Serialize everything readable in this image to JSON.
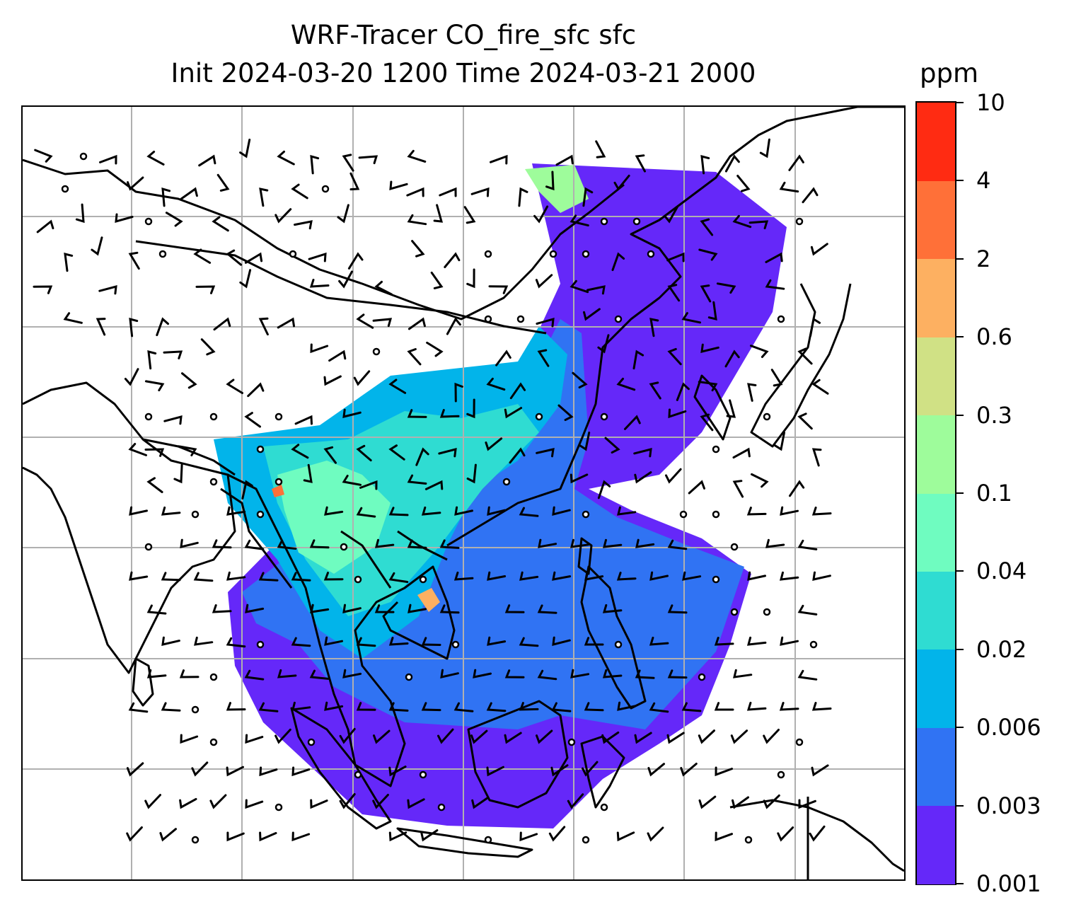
{
  "title": {
    "line1": "WRF-Tracer CO_fire_sfc sfc",
    "line2": "Init 2024-03-20 1200 Time 2024-03-21 2000"
  },
  "colorbar": {
    "unit": "ppm",
    "labels": [
      "0.001",
      "0.003",
      "0.006",
      "0.02",
      "0.04",
      "0.1",
      "0.3",
      "0.6",
      "2",
      "4",
      "10"
    ],
    "colors": [
      "#6528f9",
      "#3073f3",
      "#02b4ea",
      "#2fdcd2",
      "#6ffcc0",
      "#9efc9b",
      "#d0e185",
      "#fdb061",
      "#ff7038",
      "#ff2b12"
    ]
  },
  "map": {
    "gridlines": "on",
    "grid_color": "#b0b0b0",
    "coastline_color": "#000000"
  }
}
